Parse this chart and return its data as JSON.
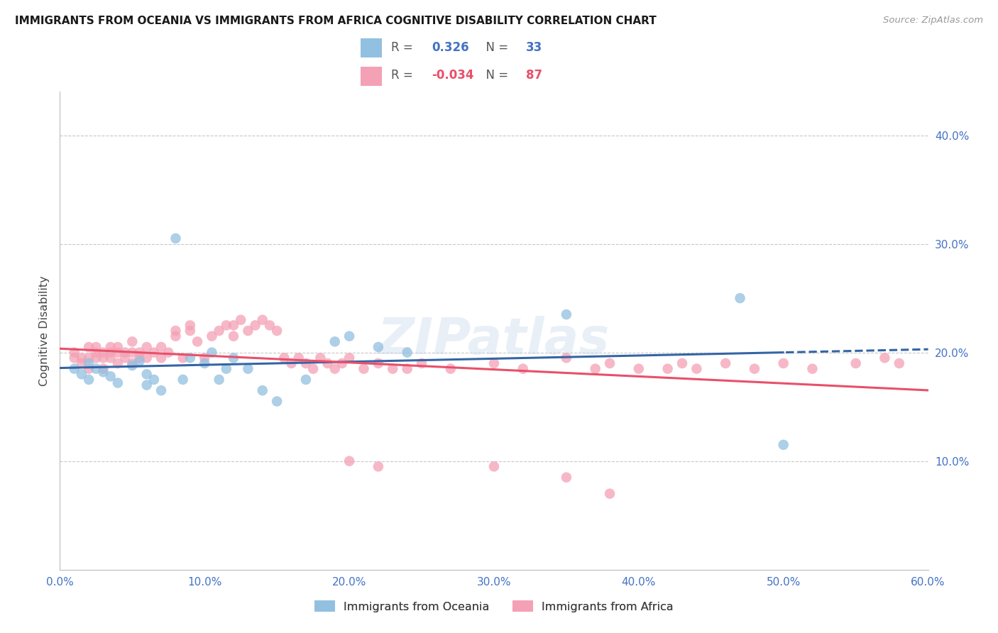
{
  "title": "IMMIGRANTS FROM OCEANIA VS IMMIGRANTS FROM AFRICA COGNITIVE DISABILITY CORRELATION CHART",
  "source": "Source: ZipAtlas.com",
  "ylabel": "Cognitive Disability",
  "legend_label1": "Immigrants from Oceania",
  "legend_label2": "Immigrants from Africa",
  "R1": 0.326,
  "N1": 33,
  "R2": -0.034,
  "N2": 87,
  "color_oceania": "#92C0E0",
  "color_africa": "#F4A0B5",
  "color_oceania_line": "#3465A4",
  "color_africa_line": "#E8506A",
  "color_axis_text": "#4472C4",
  "background_color": "#FFFFFF",
  "grid_color": "#CCCCCC",
  "xlim": [
    0.0,
    0.6
  ],
  "ylim": [
    0.0,
    0.44
  ],
  "oceania_x": [
    0.01,
    0.015,
    0.02,
    0.02,
    0.025,
    0.03,
    0.035,
    0.04,
    0.05,
    0.055,
    0.06,
    0.06,
    0.065,
    0.07,
    0.08,
    0.085,
    0.09,
    0.1,
    0.105,
    0.11,
    0.115,
    0.12,
    0.13,
    0.14,
    0.15,
    0.17,
    0.19,
    0.2,
    0.22,
    0.24,
    0.35,
    0.47,
    0.5
  ],
  "oceania_y": [
    0.185,
    0.18,
    0.19,
    0.175,
    0.185,
    0.182,
    0.178,
    0.172,
    0.188,
    0.192,
    0.17,
    0.18,
    0.175,
    0.165,
    0.305,
    0.175,
    0.195,
    0.19,
    0.2,
    0.175,
    0.185,
    0.195,
    0.185,
    0.165,
    0.155,
    0.175,
    0.21,
    0.215,
    0.205,
    0.2,
    0.235,
    0.25,
    0.115
  ],
  "africa_x": [
    0.01,
    0.01,
    0.015,
    0.015,
    0.02,
    0.02,
    0.02,
    0.025,
    0.025,
    0.025,
    0.03,
    0.03,
    0.03,
    0.035,
    0.035,
    0.035,
    0.04,
    0.04,
    0.04,
    0.045,
    0.045,
    0.05,
    0.05,
    0.05,
    0.055,
    0.055,
    0.06,
    0.06,
    0.065,
    0.07,
    0.07,
    0.075,
    0.08,
    0.08,
    0.085,
    0.09,
    0.09,
    0.095,
    0.1,
    0.105,
    0.11,
    0.115,
    0.12,
    0.12,
    0.125,
    0.13,
    0.135,
    0.14,
    0.145,
    0.15,
    0.155,
    0.16,
    0.165,
    0.17,
    0.175,
    0.18,
    0.185,
    0.19,
    0.195,
    0.2,
    0.21,
    0.22,
    0.23,
    0.24,
    0.25,
    0.27,
    0.3,
    0.32,
    0.35,
    0.37,
    0.38,
    0.4,
    0.42,
    0.43,
    0.44,
    0.46,
    0.48,
    0.5,
    0.52,
    0.57,
    0.58,
    0.2,
    0.22,
    0.3,
    0.35,
    0.38,
    0.55
  ],
  "africa_y": [
    0.195,
    0.2,
    0.19,
    0.195,
    0.185,
    0.195,
    0.205,
    0.195,
    0.2,
    0.205,
    0.195,
    0.2,
    0.185,
    0.195,
    0.2,
    0.205,
    0.19,
    0.2,
    0.205,
    0.2,
    0.195,
    0.19,
    0.2,
    0.21,
    0.195,
    0.2,
    0.195,
    0.205,
    0.2,
    0.195,
    0.205,
    0.2,
    0.215,
    0.22,
    0.195,
    0.225,
    0.22,
    0.21,
    0.195,
    0.215,
    0.22,
    0.225,
    0.215,
    0.225,
    0.23,
    0.22,
    0.225,
    0.23,
    0.225,
    0.22,
    0.195,
    0.19,
    0.195,
    0.19,
    0.185,
    0.195,
    0.19,
    0.185,
    0.19,
    0.195,
    0.185,
    0.19,
    0.185,
    0.185,
    0.19,
    0.185,
    0.19,
    0.185,
    0.195,
    0.185,
    0.19,
    0.185,
    0.185,
    0.19,
    0.185,
    0.19,
    0.185,
    0.19,
    0.185,
    0.195,
    0.19,
    0.1,
    0.095,
    0.095,
    0.085,
    0.07,
    0.19
  ]
}
